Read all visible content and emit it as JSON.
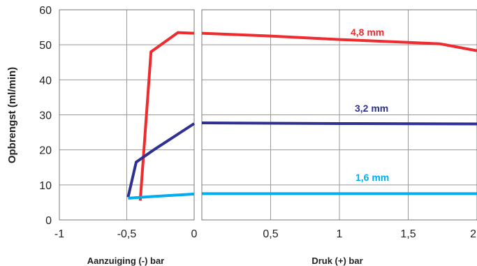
{
  "chart_data": {
    "type": "line",
    "ylabel": "Opbrengst (ml/min)",
    "ylim": [
      0,
      60
    ],
    "yticks": [
      "0",
      "10",
      "20",
      "30",
      "40",
      "50",
      "60"
    ],
    "panels": [
      {
        "id": "suction",
        "xlabel": "Aanzuiging (-) bar",
        "xlim": [
          -1,
          0
        ],
        "xticks": [
          {
            "value": -1,
            "label": "-1"
          },
          {
            "value": -0.5,
            "label": "-0,5"
          },
          {
            "value": 0,
            "label": "0"
          }
        ]
      },
      {
        "id": "pressure",
        "xlabel": "Druk (+) bar",
        "xlim": [
          0,
          2
        ],
        "xticks": [
          {
            "value": 0.5,
            "label": "0,5"
          },
          {
            "value": 1,
            "label": "1"
          },
          {
            "value": 1.5,
            "label": "1,5"
          },
          {
            "value": 2,
            "label": "2"
          }
        ]
      }
    ],
    "series": [
      {
        "name": "4,8 mm",
        "color": "#ee2c2f",
        "suction": [
          [
            -0.4,
            5.5
          ],
          [
            -0.32,
            48
          ],
          [
            -0.12,
            53.5
          ],
          [
            0,
            53.3
          ]
        ],
        "pressure": [
          [
            0,
            53.3
          ],
          [
            0.5,
            52.5
          ],
          [
            1,
            51.5
          ],
          [
            1.5,
            50.7
          ],
          [
            1.73,
            50.3
          ],
          [
            2,
            48.3
          ]
        ]
      },
      {
        "name": "3,2 mm",
        "color": "#2e3192",
        "suction": [
          [
            -0.49,
            6.5
          ],
          [
            -0.43,
            16.5
          ],
          [
            -0.3,
            20
          ],
          [
            0,
            27.5
          ]
        ],
        "pressure": [
          [
            0,
            27.7
          ],
          [
            1,
            27.5
          ],
          [
            2,
            27.4
          ]
        ]
      },
      {
        "name": "1,6 mm",
        "color": "#00aeef",
        "suction": [
          [
            -0.49,
            6.2
          ],
          [
            -0.3,
            6.7
          ],
          [
            0,
            7.4
          ]
        ],
        "pressure": [
          [
            0,
            7.5
          ],
          [
            1,
            7.5
          ],
          [
            2,
            7.5
          ]
        ]
      }
    ]
  }
}
